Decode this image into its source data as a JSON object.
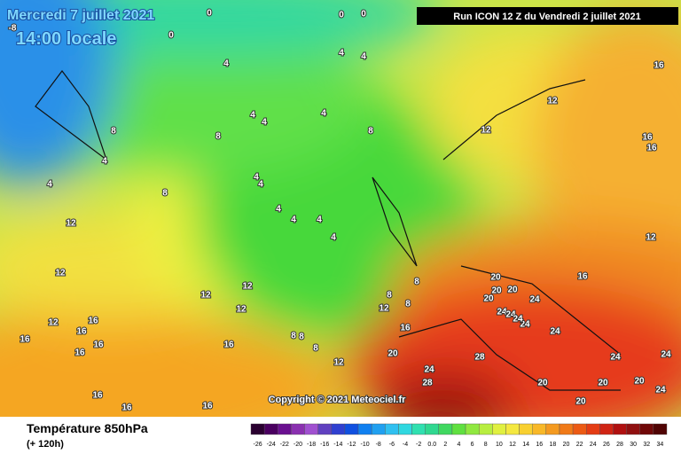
{
  "header": {
    "date": "Mercredi 7 juillet 2021",
    "time": "14:00 locale",
    "run": "Run ICON 12 Z du Vendredi 2 juillet 2021"
  },
  "copyright": "Copyright © 2021 Meteociel.fr",
  "footer": {
    "title": "Température 850hPa",
    "lead": "(+ 120h)"
  },
  "scale": [
    "-26",
    "-24",
    "-22",
    "-20",
    "-18",
    "-16",
    "-14",
    "-12",
    "-10",
    "-8",
    "-6",
    "-4",
    "-2",
    "0.0",
    "2",
    "4",
    "6",
    "8",
    "10",
    "12",
    "14",
    "16",
    "18",
    "20",
    "22",
    "24",
    "26",
    "28",
    "30",
    "32",
    "34"
  ],
  "contour_labels": [
    "0",
    "0",
    "0",
    "0",
    "-8",
    "4",
    "4",
    "4",
    "4",
    "4",
    "4",
    "4",
    "4",
    "4",
    "4",
    "4",
    "4",
    "4",
    "4",
    "8",
    "8",
    "8",
    "8",
    "8",
    "8",
    "8",
    "8",
    "8",
    "8",
    "12",
    "12",
    "12",
    "12",
    "12",
    "12",
    "12",
    "12",
    "12",
    "12",
    "12",
    "16",
    "16",
    "16",
    "16",
    "16",
    "16",
    "16",
    "16",
    "16",
    "16",
    "16",
    "16",
    "16",
    "16",
    "20",
    "20",
    "20",
    "20",
    "20",
    "20",
    "20",
    "20",
    "20",
    "24",
    "24",
    "24",
    "24",
    "24",
    "24",
    "24",
    "24",
    "24",
    "24",
    "28",
    "28"
  ]
}
